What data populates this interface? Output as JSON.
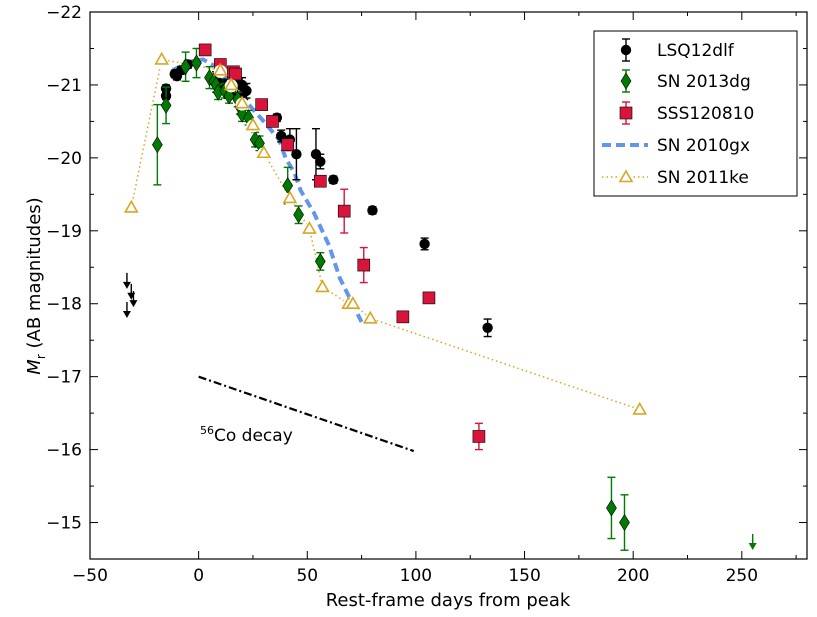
{
  "chart_data": {
    "type": "scatter",
    "title": "",
    "xlabel": "Rest-frame days from peak",
    "ylabel_symbol": "M",
    "ylabel_sub": "r",
    "ylabel_rest": " (AB magnitudes)",
    "xlim": [
      -50,
      280
    ],
    "ylim": [
      -14.5,
      -22
    ],
    "x_ticks": [
      -50,
      0,
      50,
      100,
      150,
      200,
      250
    ],
    "x_tick_labels": [
      "−50",
      "0",
      "50",
      "100",
      "150",
      "200",
      "250"
    ],
    "y_ticks": [
      -15,
      -16,
      -17,
      -18,
      -19,
      -20,
      -21,
      -22
    ],
    "y_tick_labels": [
      "−15",
      "−16",
      "−17",
      "−18",
      "−19",
      "−20",
      "−21",
      "−22"
    ],
    "grid": false,
    "legend_position": "top-right",
    "series": [
      {
        "name": "LSQ12dlf",
        "kind": "points",
        "marker": "circle",
        "color": "#000000",
        "points": [
          {
            "x": -15,
            "y": -20.95,
            "err": 0.05
          },
          {
            "x": -15,
            "y": -20.85,
            "err": 0.05
          },
          {
            "x": -11,
            "y": -21.15,
            "err": 0.05
          },
          {
            "x": -10,
            "y": -21.12,
            "err": 0.05
          },
          {
            "x": -8,
            "y": -21.2,
            "err": 0.05
          },
          {
            "x": -5,
            "y": -21.28,
            "err": 0.05
          },
          {
            "x": 8,
            "y": -21.1,
            "err": 0.08
          },
          {
            "x": 10,
            "y": -21.0,
            "err": 0.08
          },
          {
            "x": 12,
            "y": -21.0,
            "err": 0.08
          },
          {
            "x": 15,
            "y": -20.9,
            "err": 0.08
          },
          {
            "x": 18,
            "y": -21.0,
            "err": 0.1
          },
          {
            "x": 20,
            "y": -21.0,
            "err": 0.1
          },
          {
            "x": 21,
            "y": -20.9,
            "err": 0.1
          },
          {
            "x": 22,
            "y": -20.92,
            "err": 0.1
          },
          {
            "x": 36,
            "y": -20.55,
            "err": 0.05
          },
          {
            "x": 38,
            "y": -20.3,
            "err": 0.08
          },
          {
            "x": 42,
            "y": -20.25,
            "err": 0.15
          },
          {
            "x": 45,
            "y": -20.05,
            "err": 0.35
          },
          {
            "x": 54,
            "y": -20.05,
            "err": 0.35
          },
          {
            "x": 56,
            "y": -19.95,
            "err": 0.1
          },
          {
            "x": 62,
            "y": -19.7,
            "err": 0.05
          },
          {
            "x": 80,
            "y": -19.28,
            "err": 0.05
          },
          {
            "x": 104,
            "y": -18.82,
            "err": 0.08
          },
          {
            "x": 133,
            "y": -17.67,
            "err": 0.12
          }
        ]
      },
      {
        "name": "SN 2013dg",
        "kind": "points",
        "marker": "diamond",
        "color": "#007a00",
        "points": [
          {
            "x": -19,
            "y": -20.18,
            "err": 0.55
          },
          {
            "x": -15,
            "y": -20.72,
            "err": 0.25
          },
          {
            "x": -6,
            "y": -21.25,
            "err": 0.2
          },
          {
            "x": -1,
            "y": -21.3,
            "err": 0.2
          },
          {
            "x": 5,
            "y": -21.1,
            "err": 0.15
          },
          {
            "x": 7,
            "y": -21.05,
            "err": 0.1
          },
          {
            "x": 8,
            "y": -21.0,
            "err": 0.1
          },
          {
            "x": 9,
            "y": -20.9,
            "err": 0.1
          },
          {
            "x": 12,
            "y": -20.92,
            "err": 0.1
          },
          {
            "x": 14,
            "y": -20.85,
            "err": 0.1
          },
          {
            "x": 18,
            "y": -20.8,
            "err": 0.1
          },
          {
            "x": 19,
            "y": -20.7,
            "err": 0.1
          },
          {
            "x": 20,
            "y": -20.6,
            "err": 0.1
          },
          {
            "x": 23,
            "y": -20.55,
            "err": 0.1
          },
          {
            "x": 26,
            "y": -20.25,
            "err": 0.1
          },
          {
            "x": 28,
            "y": -20.2,
            "err": 0.1
          },
          {
            "x": 41,
            "y": -19.62,
            "err": 0.25
          },
          {
            "x": 46,
            "y": -19.22,
            "err": 0.12
          },
          {
            "x": 56,
            "y": -18.58,
            "err": 0.12
          },
          {
            "x": 190,
            "y": -15.2,
            "err": 0.42
          },
          {
            "x": 196,
            "y": -15.0,
            "err": 0.38
          }
        ]
      },
      {
        "name": "SSS120810",
        "kind": "points",
        "marker": "square",
        "color": "#d8143a",
        "points": [
          {
            "x": 3,
            "y": -21.48,
            "err": 0.06
          },
          {
            "x": 10,
            "y": -21.28,
            "err": 0.06
          },
          {
            "x": 16,
            "y": -21.18,
            "err": 0.06
          },
          {
            "x": 17,
            "y": -21.15,
            "err": 0.06
          },
          {
            "x": 29,
            "y": -20.73,
            "err": 0.06
          },
          {
            "x": 34,
            "y": -20.5,
            "err": 0.06
          },
          {
            "x": 41,
            "y": -20.18,
            "err": 0.06
          },
          {
            "x": 56,
            "y": -19.68,
            "err": 0.06
          },
          {
            "x": 67,
            "y": -19.27,
            "err": 0.3
          },
          {
            "x": 76,
            "y": -18.53,
            "err": 0.24
          },
          {
            "x": 94,
            "y": -17.82,
            "err": 0.06
          },
          {
            "x": 106,
            "y": -18.08,
            "err": 0.06
          },
          {
            "x": 129,
            "y": -16.18,
            "err": 0.18
          }
        ]
      },
      {
        "name": "SN 2010gx",
        "kind": "line",
        "style": "dashed",
        "color": "#6495ed",
        "points": [
          {
            "x": -12,
            "y": -21.2
          },
          {
            "x": -4,
            "y": -21.32
          },
          {
            "x": 2,
            "y": -21.35
          },
          {
            "x": 8,
            "y": -21.25
          },
          {
            "x": 14,
            "y": -21.05
          },
          {
            "x": 21,
            "y": -20.8
          },
          {
            "x": 30,
            "y": -20.5
          },
          {
            "x": 37,
            "y": -20.25
          },
          {
            "x": 40,
            "y": -20.0
          },
          {
            "x": 44,
            "y": -19.8
          },
          {
            "x": 47,
            "y": -19.55
          },
          {
            "x": 53,
            "y": -19.25
          },
          {
            "x": 60,
            "y": -18.8
          },
          {
            "x": 65,
            "y": -18.35
          },
          {
            "x": 70,
            "y": -18.05
          },
          {
            "x": 75,
            "y": -17.75
          }
        ]
      },
      {
        "name": "SN 2011ke",
        "kind": "line-markers",
        "marker": "triangle",
        "style": "dotted",
        "color": "#daa520",
        "points": [
          {
            "x": -31,
            "y": -19.32
          },
          {
            "x": -17,
            "y": -21.35
          },
          {
            "x": 10,
            "y": -21.2
          },
          {
            "x": 15,
            "y": -21.0
          },
          {
            "x": 20,
            "y": -20.75
          },
          {
            "x": 25,
            "y": -20.45
          },
          {
            "x": 30,
            "y": -20.07
          },
          {
            "x": 42,
            "y": -19.45
          },
          {
            "x": 51,
            "y": -19.03
          },
          {
            "x": 57,
            "y": -18.23
          },
          {
            "x": 69,
            "y": -18.0
          },
          {
            "x": 71,
            "y": -18.0
          },
          {
            "x": 79,
            "y": -17.8
          },
          {
            "x": 203,
            "y": -16.55
          }
        ]
      }
    ],
    "upper_limits": [
      {
        "x": -33,
        "y": -18.3,
        "color": "#000000"
      },
      {
        "x": -31,
        "y": -18.15,
        "color": "#000000"
      },
      {
        "x": -30,
        "y": -18.05,
        "color": "#000000"
      },
      {
        "x": -33,
        "y": -17.9,
        "color": "#000000"
      },
      {
        "x": 255,
        "y": -14.72,
        "color": "#007a00"
      }
    ],
    "reference_line": {
      "label_sup": "56",
      "label": "Co decay",
      "style": "dashdot",
      "color": "#000000",
      "points": [
        {
          "x": 0,
          "y": -17.0
        },
        {
          "x": 99,
          "y": -15.98
        }
      ]
    },
    "annotation_anchor": {
      "x": 0,
      "y": -16.1
    }
  }
}
